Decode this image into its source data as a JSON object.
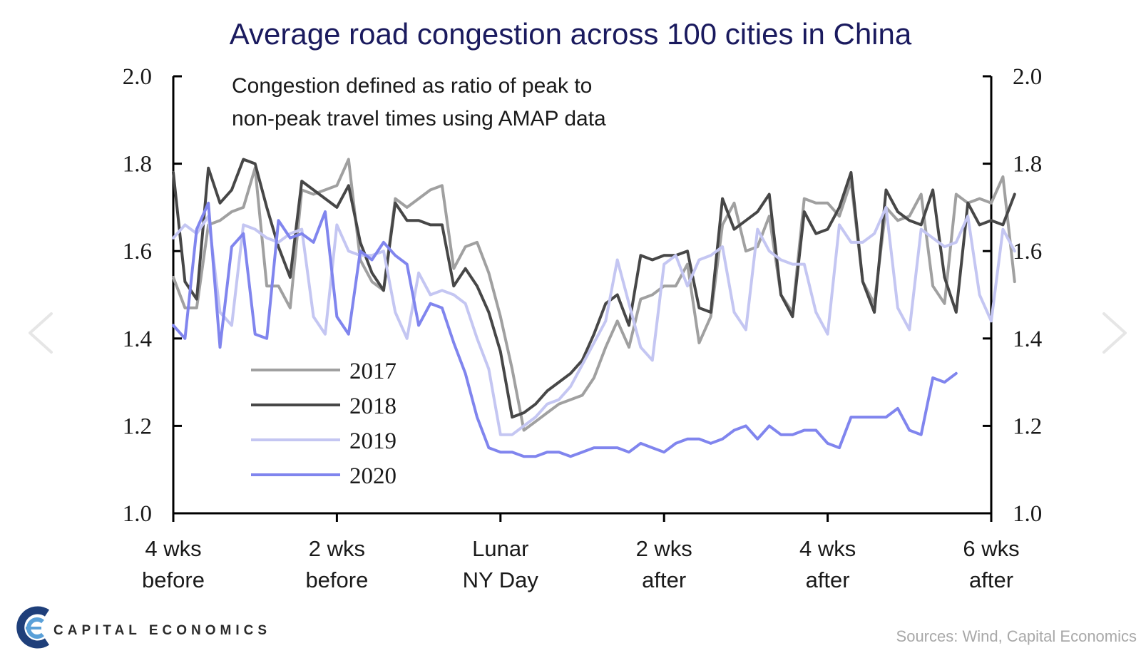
{
  "chart_data": {
    "type": "line",
    "title": "Average road congestion across 100 cities in China",
    "annotation": [
      "Congestion  defined  as ratio  of  peak  to",
      "non-peak  travel times using  AMAP  data"
    ],
    "x_ticks": [
      {
        "at": -28,
        "lines": [
          "4 wks",
          "before"
        ]
      },
      {
        "at": -14,
        "lines": [
          "2 wks",
          "before"
        ]
      },
      {
        "at": 0,
        "lines": [
          "Lunar",
          "NY Day"
        ]
      },
      {
        "at": 14,
        "lines": [
          "2 wks",
          "after"
        ]
      },
      {
        "at": 28,
        "lines": [
          "4 wks",
          "after"
        ]
      },
      {
        "at": 42,
        "lines": [
          "6 wks",
          "after"
        ]
      }
    ],
    "xlim": [
      -28,
      42
    ],
    "ylim": [
      1.0,
      2.0
    ],
    "y_ticks": [
      "1.0",
      "1.2",
      "1.4",
      "1.6",
      "1.8",
      "2.0"
    ],
    "y_tick_values": [
      1.0,
      1.2,
      1.4,
      1.6,
      1.8,
      2.0
    ],
    "secondary_y_axis": true,
    "grid": false,
    "legend_position": "bottom-left",
    "series": [
      {
        "name": "2017",
        "color": "#a0a0a0",
        "x_start": -28,
        "values": [
          1.54,
          1.47,
          1.47,
          1.66,
          1.67,
          1.69,
          1.7,
          1.79,
          1.52,
          1.52,
          1.47,
          1.74,
          1.73,
          1.74,
          1.75,
          1.81,
          1.58,
          1.53,
          1.51,
          1.72,
          1.7,
          1.72,
          1.74,
          1.75,
          1.56,
          1.61,
          1.62,
          1.55,
          1.45,
          1.33,
          1.19,
          1.21,
          1.23,
          1.25,
          1.26,
          1.27,
          1.31,
          1.38,
          1.44,
          1.38,
          1.49,
          1.5,
          1.52,
          1.52,
          1.57,
          1.39,
          1.45,
          1.66,
          1.71,
          1.6,
          1.61,
          1.68,
          1.5,
          1.46,
          1.72,
          1.71,
          1.71,
          1.68,
          1.76,
          1.53,
          1.48,
          1.7,
          1.67,
          1.68,
          1.73,
          1.52,
          1.48,
          1.73,
          1.71,
          1.72,
          1.71,
          1.77,
          1.53
        ]
      },
      {
        "name": "2018",
        "color": "#474747",
        "x_start": -28,
        "values": [
          1.78,
          1.53,
          1.49,
          1.79,
          1.71,
          1.74,
          1.81,
          1.8,
          1.7,
          1.61,
          1.54,
          1.76,
          1.74,
          1.72,
          1.7,
          1.75,
          1.62,
          1.55,
          1.51,
          1.71,
          1.67,
          1.67,
          1.66,
          1.66,
          1.52,
          1.56,
          1.52,
          1.46,
          1.37,
          1.22,
          1.23,
          1.25,
          1.28,
          1.3,
          1.32,
          1.35,
          1.41,
          1.48,
          1.5,
          1.43,
          1.59,
          1.58,
          1.59,
          1.59,
          1.6,
          1.47,
          1.46,
          1.72,
          1.65,
          1.67,
          1.69,
          1.73,
          1.5,
          1.45,
          1.69,
          1.64,
          1.65,
          1.7,
          1.78,
          1.53,
          1.46,
          1.74,
          1.69,
          1.67,
          1.66,
          1.74,
          1.54,
          1.46,
          1.71,
          1.66,
          1.67,
          1.66,
          1.73
        ]
      },
      {
        "name": "2019",
        "color": "#c4c6f2",
        "x_start": -28,
        "values": [
          1.63,
          1.66,
          1.64,
          1.68,
          1.46,
          1.43,
          1.66,
          1.65,
          1.63,
          1.62,
          1.64,
          1.65,
          1.45,
          1.41,
          1.66,
          1.6,
          1.59,
          1.59,
          1.6,
          1.46,
          1.4,
          1.55,
          1.5,
          1.51,
          1.5,
          1.48,
          1.4,
          1.33,
          1.18,
          1.18,
          1.2,
          1.22,
          1.25,
          1.26,
          1.29,
          1.34,
          1.39,
          1.44,
          1.58,
          1.48,
          1.38,
          1.35,
          1.57,
          1.59,
          1.52,
          1.58,
          1.59,
          1.61,
          1.46,
          1.42,
          1.65,
          1.6,
          1.58,
          1.57,
          1.57,
          1.46,
          1.41,
          1.66,
          1.62,
          1.62,
          1.64,
          1.7,
          1.47,
          1.42,
          1.65,
          1.63,
          1.61,
          1.62,
          1.68,
          1.5,
          1.44,
          1.65,
          1.6
        ]
      },
      {
        "name": "2020",
        "color": "#8085ee",
        "x_start": -28,
        "values": [
          1.43,
          1.4,
          1.65,
          1.71,
          1.38,
          1.61,
          1.64,
          1.41,
          1.4,
          1.67,
          1.63,
          1.64,
          1.62,
          1.69,
          1.45,
          1.41,
          1.6,
          1.58,
          1.62,
          1.59,
          1.57,
          1.43,
          1.48,
          1.47,
          1.39,
          1.32,
          1.22,
          1.15,
          1.14,
          1.14,
          1.13,
          1.13,
          1.14,
          1.14,
          1.13,
          1.14,
          1.15,
          1.15,
          1.15,
          1.14,
          1.16,
          1.15,
          1.14,
          1.16,
          1.17,
          1.17,
          1.16,
          1.17,
          1.19,
          1.2,
          1.17,
          1.2,
          1.18,
          1.18,
          1.19,
          1.19,
          1.16,
          1.15,
          1.22,
          1.22,
          1.22,
          1.22,
          1.24,
          1.19,
          1.18,
          1.31,
          1.3,
          1.32
        ]
      }
    ]
  },
  "footer": {
    "brand": "CAPITAL  ECONOMICS",
    "sources": "Sources: Wind, Capital Economics"
  },
  "nav": {
    "prev_icon": "chevron-left-icon",
    "next_icon": "chevron-right-icon"
  }
}
